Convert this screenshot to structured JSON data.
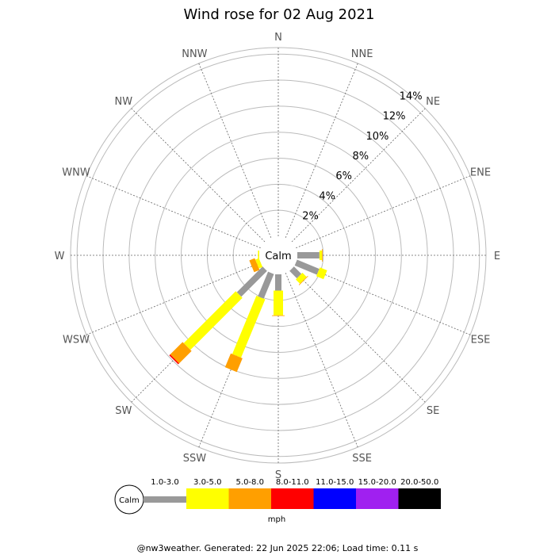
{
  "chart_data": {
    "type": "wind-rose",
    "title": "Wind rose for 02 Aug 2021",
    "calm_label": "Calm",
    "directions": [
      "N",
      "NNE",
      "NE",
      "ENE",
      "E",
      "ESE",
      "SE",
      "SSE",
      "S",
      "SSW",
      "SW",
      "WSW",
      "W",
      "WNW",
      "NW",
      "NNW"
    ],
    "radial_ticks": [
      2,
      4,
      6,
      8,
      10,
      12,
      14
    ],
    "radial_tick_labels": [
      "2%",
      "4%",
      "6%",
      "8%",
      "10%",
      "12%",
      "14%"
    ],
    "radial_max": 14.5,
    "speed_bins": [
      {
        "label": "1.0-3.0",
        "color": "#999999"
      },
      {
        "label": "3.0-5.0",
        "color": "#ffff00"
      },
      {
        "label": "5.0-8.0",
        "color": "#ff9f00"
      },
      {
        "label": "8.0-11.0",
        "color": "#ff0000"
      },
      {
        "label": "11.0-15.0",
        "color": "#0000ff"
      },
      {
        "label": "15.0-20.0",
        "color": "#a020f0"
      },
      {
        "label": "20.0-50.0",
        "color": "#000000"
      }
    ],
    "unit_label": "mph",
    "series": [
      {
        "direction": "N",
        "cumulative": [
          0,
          0,
          0,
          0,
          0,
          0,
          0
        ]
      },
      {
        "direction": "NNE",
        "cumulative": [
          0,
          0,
          0,
          0,
          0,
          0,
          0
        ]
      },
      {
        "direction": "NE",
        "cumulative": [
          0,
          0,
          0,
          0,
          0,
          0,
          0
        ]
      },
      {
        "direction": "ENE",
        "cumulative": [
          0,
          0,
          0,
          0,
          0,
          0,
          0
        ]
      },
      {
        "direction": "E",
        "cumulative": [
          1.7,
          1.9,
          1.95,
          1.95,
          1.95,
          1.95,
          1.95
        ]
      },
      {
        "direction": "ESE",
        "cumulative": [
          1.85,
          2.45,
          2.45,
          2.45,
          2.45,
          2.45,
          2.45
        ]
      },
      {
        "direction": "SE",
        "cumulative": [
          0.8,
          1.25,
          1.3,
          1.3,
          1.3,
          1.3,
          1.3
        ]
      },
      {
        "direction": "SSE",
        "cumulative": [
          0,
          0,
          0,
          0,
          0,
          0,
          0
        ]
      },
      {
        "direction": "S",
        "cumulative": [
          1.25,
          3.15,
          3.2,
          3.2,
          3.2,
          3.2,
          3.2
        ]
      },
      {
        "direction": "SSW",
        "cumulative": [
          2.05,
          6.9,
          8.05,
          8.05,
          8.05,
          8.05,
          8.05
        ]
      },
      {
        "direction": "SW",
        "cumulative": [
          2.8,
          8.45,
          9.8,
          9.9,
          9.9,
          9.9,
          9.9
        ]
      },
      {
        "direction": "WSW",
        "cumulative": [
          0,
          0.3,
          0.75,
          0.75,
          0.75,
          0.75,
          0.75
        ]
      },
      {
        "direction": "W",
        "cumulative": [
          0,
          0.1,
          0.1,
          0.1,
          0.1,
          0.1,
          0.1
        ]
      },
      {
        "direction": "WNW",
        "cumulative": [
          0,
          0,
          0,
          0,
          0,
          0,
          0
        ]
      },
      {
        "direction": "NW",
        "cumulative": [
          0,
          0,
          0,
          0,
          0,
          0,
          0
        ]
      },
      {
        "direction": "NNW",
        "cumulative": [
          0,
          0,
          0,
          0,
          0,
          0,
          0
        ]
      }
    ],
    "grid": true,
    "legend_position": "bottom"
  },
  "footer": "@nw3weather. Generated: 22 Jun 2025 22:06; Load time: 0.11 s"
}
